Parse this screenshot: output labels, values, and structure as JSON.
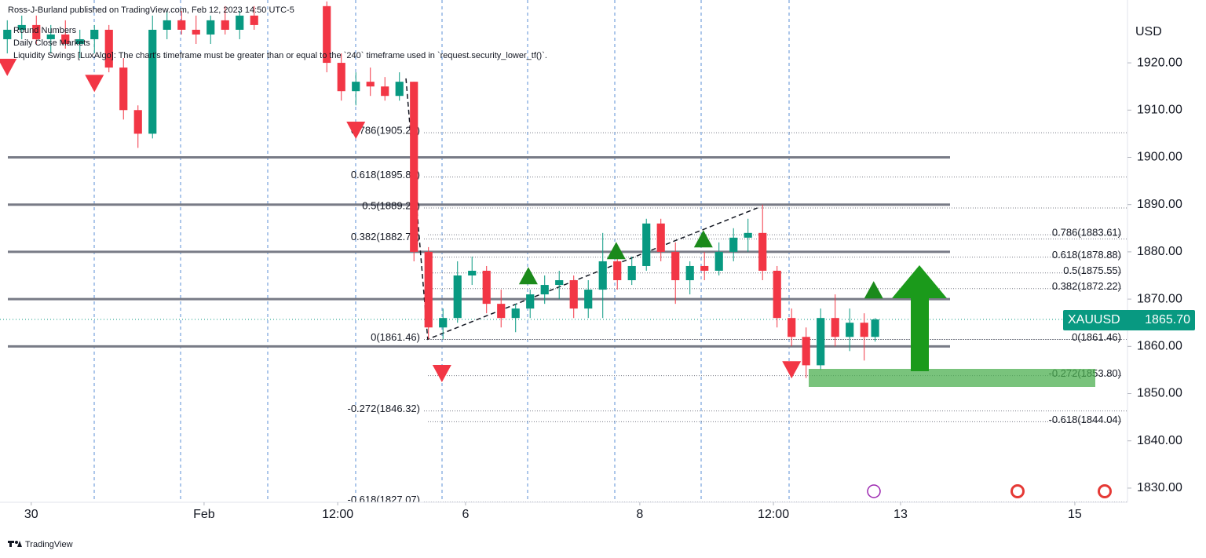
{
  "chart_data": {
    "type": "candlestick",
    "title": "Ross-J-Burland published on TradingView.com, Feb 12, 2023 14:50 UTC-5",
    "indicators": [
      "Round Numbers",
      "Daily Close Markets",
      "Liquidity Swings [LuxAlgo]: The chart's timeframe must be greater than or equal to the `240` timeframe used in `request.security_lower_tf()`."
    ],
    "currency": "USD",
    "symbol": "XAUUSD",
    "last_price": 1865.7,
    "last_price_label": "1865.70",
    "footer": "TradingView",
    "up_color": "#089981",
    "down_color": "#f23645",
    "xlim": [
      0,
      310.5
    ],
    "ylim": [
      1827,
      1933.3
    ],
    "xticks": [
      {
        "value": 8.6,
        "label": "30"
      },
      {
        "value": 56.2,
        "label": "Feb"
      },
      {
        "value": 93,
        "label": "12:00"
      },
      {
        "value": 128.2,
        "label": "6"
      },
      {
        "value": 176.2,
        "label": "8"
      },
      {
        "value": 213,
        "label": "12:00"
      },
      {
        "value": 248,
        "label": "13"
      },
      {
        "value": 296,
        "label": "15"
      }
    ],
    "yticks": [
      {
        "value": 1920,
        "label": "1920.00"
      },
      {
        "value": 1910,
        "label": "1910.00"
      },
      {
        "value": 1900,
        "label": "1900.00"
      },
      {
        "value": 1890,
        "label": "1890.00"
      },
      {
        "value": 1880,
        "label": "1880.00"
      },
      {
        "value": 1870,
        "label": "1870.00"
      },
      {
        "value": 1860,
        "label": "1860.00"
      },
      {
        "value": 1850,
        "label": "1850.00"
      },
      {
        "value": 1840,
        "label": "1840.00"
      },
      {
        "value": 1830,
        "label": "1830.00"
      }
    ],
    "round_numbers": [
      1900,
      1890,
      1880,
      1870,
      1860
    ],
    "x": [
      2,
      6,
      10,
      14,
      18,
      22,
      26,
      30,
      34,
      38,
      42,
      46,
      50,
      54,
      58,
      62,
      66,
      70,
      90,
      94,
      98,
      102,
      106,
      110,
      114,
      118,
      122,
      126,
      130,
      134,
      138,
      142,
      146,
      150,
      154,
      158,
      162,
      166,
      170,
      174,
      178,
      182,
      186,
      190,
      194,
      198,
      202,
      206,
      210,
      214,
      218,
      222,
      226,
      230,
      234,
      238,
      241
    ],
    "open": [
      1925,
      1927,
      1928,
      1925,
      1926,
      1924,
      1925,
      1927,
      1919,
      1910,
      1905,
      1927,
      1929,
      1927,
      1926,
      1929,
      1927,
      1930,
      1932,
      1920,
      1914,
      1916,
      1915,
      1913,
      1916,
      1880,
      1864,
      1866,
      1875,
      1876,
      1869,
      1866,
      1868,
      1871,
      1873,
      1874,
      1868,
      1872,
      1878,
      1874,
      1877,
      1886,
      1880,
      1874,
      1877,
      1876,
      1880,
      1883,
      1884,
      1876,
      1866,
      1862,
      1856,
      1866,
      1862,
      1865,
      1862
    ],
    "high": [
      1929,
      1930,
      1930,
      1928,
      1929,
      1927,
      1928,
      1928,
      1921,
      1911,
      1930,
      1931,
      1931,
      1930,
      1930,
      1932,
      1931,
      1932,
      1933,
      1922,
      1918,
      1919,
      1917,
      1918,
      1916,
      1881,
      1868,
      1878,
      1879,
      1877,
      1872,
      1869,
      1872,
      1875,
      1876,
      1875,
      1874,
      1884,
      1880,
      1879,
      1887,
      1887,
      1882,
      1878,
      1880,
      1882,
      1885,
      1887,
      1890,
      1877,
      1868,
      1864,
      1868,
      1871,
      1868,
      1867,
      1866
    ],
    "low": [
      1922,
      1925,
      1924,
      1922,
      1923,
      1921,
      1922,
      1918,
      1908,
      1902,
      1904,
      1925,
      1926,
      1924,
      1924,
      1926,
      1925,
      1927,
      1918,
      1912,
      1911,
      1913,
      1912,
      1912,
      1878,
      1861.5,
      1861.5,
      1865,
      1873,
      1867,
      1864,
      1863,
      1866,
      1869,
      1870,
      1866,
      1866,
      1866,
      1872,
      1873,
      1876,
      1878,
      1869,
      1871,
      1874,
      1875,
      1878,
      1880,
      1874,
      1864,
      1860,
      1853.3,
      1855,
      1860,
      1859,
      1857,
      1861
    ],
    "close": [
      1927,
      1928,
      1925,
      1926,
      1924,
      1925,
      1927,
      1919,
      1910,
      1905,
      1927,
      1929,
      1927,
      1926,
      1929,
      1927,
      1930,
      1928,
      1920,
      1914,
      1916,
      1915,
      1913,
      1916,
      1880,
      1864,
      1866,
      1875,
      1876,
      1869,
      1866,
      1868,
      1871,
      1873,
      1874,
      1868,
      1872,
      1878,
      1874,
      1877,
      1886,
      1880,
      1874,
      1877,
      1876,
      1880,
      1883,
      1884,
      1876,
      1866,
      1862,
      1856,
      1866,
      1862,
      1865,
      1862,
      1865.7
    ],
    "fib_left": [
      {
        "label": "0.786(1905.20)",
        "value": 1905.2
      },
      {
        "label": "0.618(1895.85)",
        "value": 1895.85
      },
      {
        "label": "0.5(1889.28)",
        "value": 1889.28
      },
      {
        "label": "0.382(1882.72)",
        "value": 1882.72
      },
      {
        "label": "0(1861.46)",
        "value": 1861.46
      },
      {
        "label": "-0.272(1846.32)",
        "value": 1846.32
      },
      {
        "label": "-0.618(1827.07)",
        "value": 1827.07
      }
    ],
    "fib_right": [
      {
        "label": "0.786(1883.61)",
        "value": 1883.61
      },
      {
        "label": "0.618(1878.88)",
        "value": 1878.88
      },
      {
        "label": "0.5(1875.55)",
        "value": 1875.55
      },
      {
        "label": "0.382(1872.22)",
        "value": 1872.22
      },
      {
        "label": "0(1861.46)",
        "value": 1861.46
      },
      {
        "label": "-0.272(1853.80)",
        "value": 1853.8
      },
      {
        "label": "-0.618(1844.04)",
        "value": 1844.04
      }
    ],
    "swing_highs": {
      "x": [
        2,
        26,
        98,
        121.7,
        218
      ],
      "y": [
        1919.2,
        1915.8,
        1905.9,
        1854.4,
        1855.2
      ]
    },
    "swing_lows": {
      "x": [
        145.5,
        169.7,
        193.7,
        240.6
      ],
      "y": [
        1874.8,
        1880.1,
        1882.6,
        1871.8
      ]
    },
    "trend_line": {
      "x": [
        111.8,
        117.8,
        208.6
      ],
      "y": [
        1916.7,
        1861.5,
        1889.3
      ]
    }
  }
}
